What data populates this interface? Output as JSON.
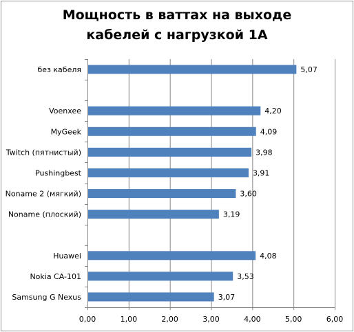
{
  "chart_data": {
    "type": "bar",
    "orientation": "horizontal",
    "title_lines": [
      "Мощность в ваттах на выходе",
      "кабелей с нагрузкой 1А"
    ],
    "categories": [
      "без кабеля",
      "",
      "Voenxee",
      "MyGeek",
      "Twitch (пятнистый)",
      "Pushingbest",
      "Noname 2 (мягкий)",
      "Noname (плоский)",
      "",
      "Huawei",
      "Nokia CA-101",
      "Samsung G Nexus"
    ],
    "values": [
      5.07,
      null,
      4.2,
      4.09,
      3.98,
      3.91,
      3.6,
      3.19,
      null,
      4.08,
      3.53,
      3.07
    ],
    "value_labels": [
      "5,07",
      "",
      "4,20",
      "4,09",
      "3,98",
      "3,91",
      "3,60",
      "3,19",
      "",
      "4,08",
      "3,53",
      "3,07"
    ],
    "xlim": [
      0,
      6
    ],
    "x_ticks": [
      0,
      1,
      2,
      3,
      4,
      5,
      6
    ],
    "x_tick_labels": [
      "0,00",
      "1,00",
      "2,00",
      "3,00",
      "4,00",
      "5,00",
      "6,00"
    ],
    "grid": "vertical",
    "legend": "none",
    "bar_color": "#4f81bd",
    "grid_color": "#868686"
  }
}
